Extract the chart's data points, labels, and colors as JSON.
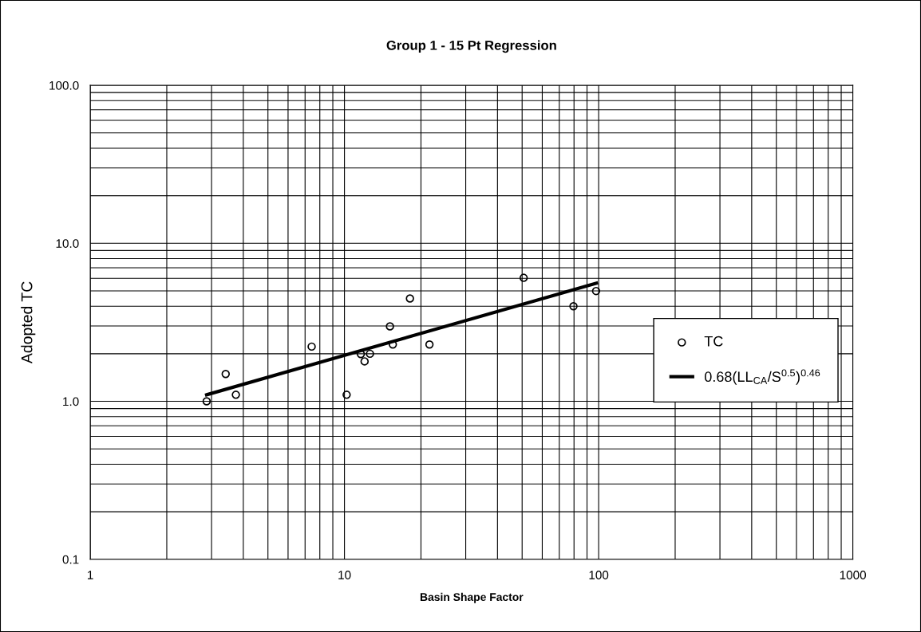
{
  "chart_data": {
    "type": "scatter",
    "title": "Group 1 - 15 Pt Regression",
    "xlabel": "Basin Shape Factor",
    "ylabel": "Adopted TC",
    "log": "xy",
    "grid": true,
    "legend": "right",
    "marker": "circle",
    "xlim": [
      1,
      1000
    ],
    "xticks": [
      1,
      10,
      100,
      1000
    ],
    "ylim": [
      0.1,
      100
    ],
    "yticks": [
      {
        "value": 0.1,
        "label": "0.1"
      },
      {
        "value": 1,
        "label": "1.0"
      },
      {
        "value": 10,
        "label": "10.0"
      },
      {
        "value": 100,
        "label": "100.0"
      }
    ],
    "series": [
      {
        "name": "TC",
        "color": "#000000",
        "x": [
          2.87,
          3.41,
          3.74,
          7.43,
          10.2,
          11.6,
          12.0,
          12.6,
          15.1,
          15.5,
          18.1,
          21.6,
          50.7,
          79.6,
          97.7
        ],
        "values": [
          1.0,
          1.49,
          1.1,
          2.22,
          1.1,
          1.99,
          1.79,
          2.0,
          2.98,
          2.29,
          4.48,
          2.29,
          6.05,
          4.0,
          4.99
        ]
      },
      {
        "name": "0.68(LL$_{CA}$/S$^{0.5}$)$^{0.46}$",
        "type": "line",
        "color": "#000000",
        "marker": "none",
        "line_style": "solid",
        "x": [
          2.87,
          98
        ],
        "values": [
          1.1,
          5.6
        ]
      }
    ]
  }
}
